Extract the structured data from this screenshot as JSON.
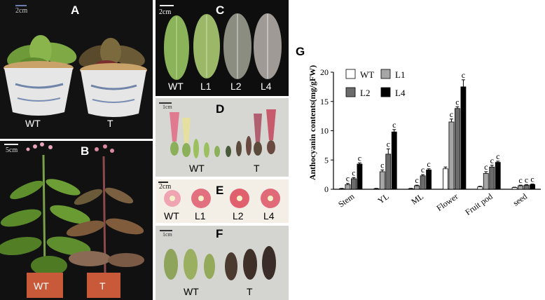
{
  "panels": {
    "A": {
      "label": "A",
      "scale": "2cm",
      "left": "WT",
      "right": "T"
    },
    "B": {
      "label": "B",
      "scale": "5cm",
      "left": "WT",
      "right": "T"
    },
    "C": {
      "label": "C",
      "scale": "2cm",
      "items": [
        "WT",
        "L1",
        "L2",
        "L4"
      ]
    },
    "D": {
      "label": "D",
      "scale": "1cm",
      "left": "WT",
      "right": "T"
    },
    "E": {
      "label": "E",
      "scale": "2cm",
      "items": [
        "WT",
        "L1",
        "L2",
        "L4"
      ]
    },
    "F": {
      "label": "F",
      "scale": "1cm",
      "left": "WT",
      "right": "T"
    },
    "G": {
      "label": "G"
    }
  },
  "colors": {
    "bg_dark": "#111111",
    "bg_light": "#d9d9d6",
    "wt": "#ffffff",
    "l1": "#a6a6a6",
    "l2": "#6b6b6b",
    "l4": "#000000"
  },
  "chart_data": {
    "type": "bar",
    "ylabel": "Anthocyanin contents(mg/gFW)",
    "ylim": [
      0,
      20
    ],
    "yticks": [
      "0",
      "5",
      "10",
      "15",
      "20"
    ],
    "categories": [
      "Stem",
      "YL",
      "ML",
      "Flower",
      "Fruit pod",
      "seed"
    ],
    "series": [
      {
        "name": "WT",
        "values": [
          0.1,
          0.1,
          0.1,
          3.5,
          0.4,
          0.3
        ],
        "err": [
          0.05,
          0.05,
          0.05,
          0.3,
          0.1,
          0.05
        ]
      },
      {
        "name": "L1",
        "values": [
          0.8,
          3.0,
          0.6,
          11.5,
          2.7,
          0.6
        ],
        "err": [
          0.2,
          0.3,
          0.1,
          0.5,
          0.3,
          0.1
        ]
      },
      {
        "name": "L2",
        "values": [
          1.8,
          6.0,
          2.3,
          13.8,
          3.8,
          0.7
        ],
        "err": [
          0.2,
          0.9,
          0.2,
          0.3,
          0.3,
          0.1
        ]
      },
      {
        "name": "L4",
        "values": [
          4.3,
          9.8,
          3.3,
          17.5,
          4.6,
          0.8
        ],
        "err": [
          0.2,
          0.4,
          0.2,
          1.2,
          0.2,
          0.1
        ]
      }
    ],
    "annotation": "c",
    "legend": "top-left"
  }
}
